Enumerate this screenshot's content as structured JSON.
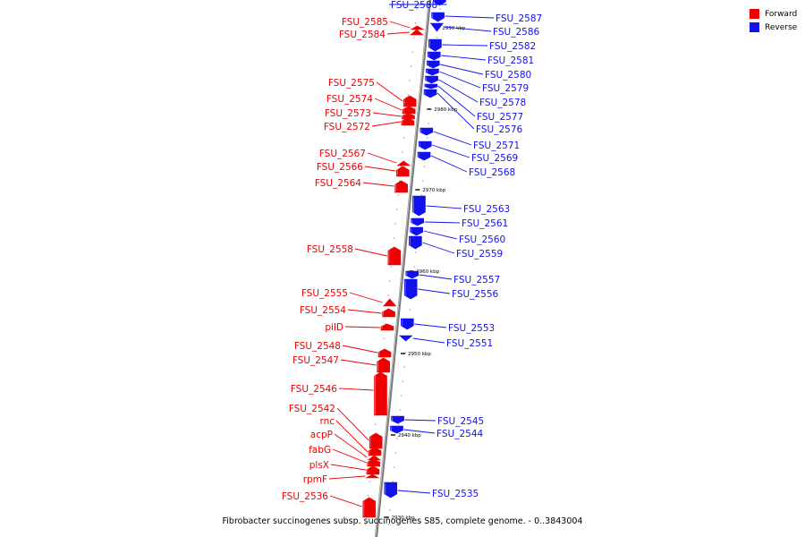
{
  "legend": {
    "forward": {
      "label": "Forward",
      "color": "#ee0000"
    },
    "reverse": {
      "label": "Reverse",
      "color": "#1111ee"
    }
  },
  "caption": "Fibrobacter succinogenes subsp. succinogenes S85, complete genome. - 0..3843004",
  "scale_labels": [
    "2990 kbp",
    "2980 kbp",
    "2970 kbp",
    "2960 kbp",
    "2950 kbp",
    "2940 kbp",
    "2930 kbp"
  ],
  "genes": [
    {
      "id": "FSU_2588",
      "strand": "reverse"
    },
    {
      "id": "FSU_2587",
      "strand": "reverse"
    },
    {
      "id": "FSU_2586",
      "strand": "reverse"
    },
    {
      "id": "FSU_2585",
      "strand": "forward"
    },
    {
      "id": "FSU_2584",
      "strand": "forward"
    },
    {
      "id": "FSU_2582",
      "strand": "reverse"
    },
    {
      "id": "FSU_2581",
      "strand": "reverse"
    },
    {
      "id": "FSU_2580",
      "strand": "reverse"
    },
    {
      "id": "FSU_2579",
      "strand": "reverse"
    },
    {
      "id": "FSU_2578",
      "strand": "reverse"
    },
    {
      "id": "FSU_2577",
      "strand": "reverse"
    },
    {
      "id": "FSU_2576",
      "strand": "reverse"
    },
    {
      "id": "FSU_2575",
      "strand": "forward"
    },
    {
      "id": "FSU_2574",
      "strand": "forward"
    },
    {
      "id": "FSU_2573",
      "strand": "forward"
    },
    {
      "id": "FSU_2572",
      "strand": "forward"
    },
    {
      "id": "FSU_2571",
      "strand": "reverse"
    },
    {
      "id": "FSU_2569",
      "strand": "reverse"
    },
    {
      "id": "FSU_2568",
      "strand": "reverse"
    },
    {
      "id": "FSU_2567",
      "strand": "forward"
    },
    {
      "id": "FSU_2566",
      "strand": "forward"
    },
    {
      "id": "FSU_2564",
      "strand": "forward"
    },
    {
      "id": "FSU_2563",
      "strand": "reverse"
    },
    {
      "id": "FSU_2561",
      "strand": "reverse"
    },
    {
      "id": "FSU_2560",
      "strand": "reverse"
    },
    {
      "id": "FSU_2559",
      "strand": "reverse"
    },
    {
      "id": "FSU_2558",
      "strand": "forward"
    },
    {
      "id": "FSU_2557",
      "strand": "reverse"
    },
    {
      "id": "FSU_2556",
      "strand": "reverse"
    },
    {
      "id": "FSU_2555",
      "strand": "forward"
    },
    {
      "id": "FSU_2554",
      "strand": "forward"
    },
    {
      "id": "pilD",
      "strand": "forward"
    },
    {
      "id": "FSU_2553",
      "strand": "reverse"
    },
    {
      "id": "FSU_2551",
      "strand": "reverse"
    },
    {
      "id": "FSU_2548",
      "strand": "forward"
    },
    {
      "id": "FSU_2547",
      "strand": "forward"
    },
    {
      "id": "FSU_2546",
      "strand": "forward"
    },
    {
      "id": "FSU_2545",
      "strand": "reverse"
    },
    {
      "id": "FSU_2544",
      "strand": "reverse"
    },
    {
      "id": "FSU_2542",
      "strand": "forward"
    },
    {
      "id": "rnc",
      "strand": "forward"
    },
    {
      "id": "acpP",
      "strand": "forward"
    },
    {
      "id": "fabG",
      "strand": "forward"
    },
    {
      "id": "plsX",
      "strand": "forward"
    },
    {
      "id": "rpmF",
      "strand": "forward"
    },
    {
      "id": "FSU_2535",
      "strand": "reverse"
    },
    {
      "id": "FSU_2536",
      "strand": "forward"
    }
  ]
}
